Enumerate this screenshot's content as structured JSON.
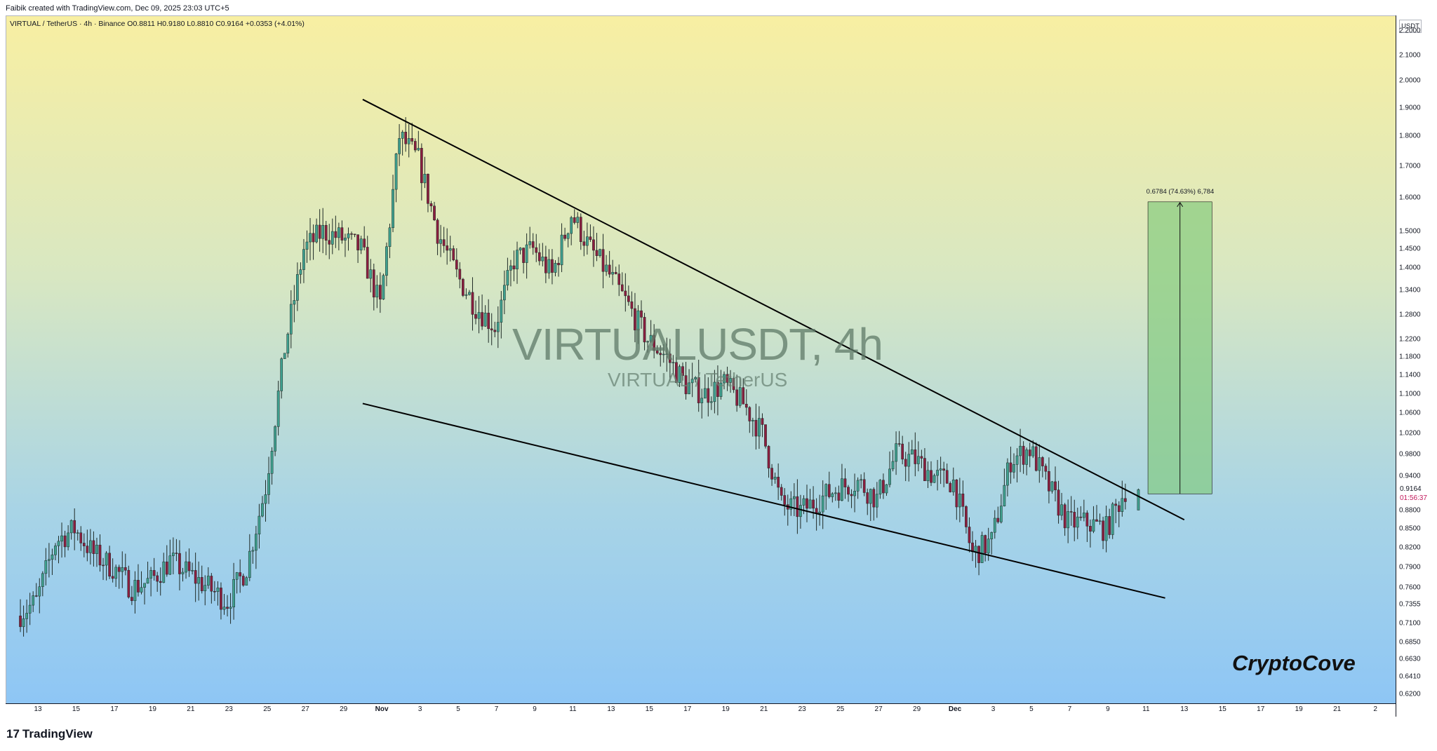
{
  "header": {
    "created_note": "Faibik created with TradingView.com, Dec 09, 2025 23:03 UTC+5"
  },
  "legend": {
    "line": "VIRTUAL / TetherUS · 4h · Binance  O0.8811  H0.9180  L0.8810  C0.9164  +0.0353 (+4.01%)"
  },
  "watermark": {
    "symbol": "VIRTUALUSDT, 4h",
    "name": "VIRTUAL / TetherUS"
  },
  "signature": "CryptoCove",
  "footer": {
    "logo_mark": "17",
    "logo_text": "TradingView"
  },
  "chart_data": {
    "type": "candlestick",
    "symbol": "VIRTUAL / TetherUS",
    "timeframe": "4h",
    "exchange": "Binance",
    "ohlc": {
      "open": 0.8811,
      "high": 0.918,
      "low": 0.881,
      "close": 0.9164,
      "change": 0.0353,
      "change_pct": "+4.01%"
    },
    "y_axis": {
      "title": "USDT",
      "scale": "log",
      "ticks": [
        "2.2000",
        "2.1000",
        "2.0000",
        "1.9000",
        "1.8000",
        "1.7000",
        "1.6000",
        "1.5000",
        "1.4500",
        "1.4000",
        "1.3400",
        "1.2800",
        "1.2200",
        "1.1800",
        "1.1400",
        "1.1000",
        "1.0600",
        "1.0200",
        "0.9800",
        "0.9400",
        "0.8800",
        "0.8500",
        "0.8200",
        "0.7900",
        "0.7600",
        "0.7355",
        "0.7100",
        "0.6850",
        "0.6630",
        "0.6410",
        "0.6200"
      ],
      "range": [
        0.6,
        2.3
      ]
    },
    "x_axis": {
      "ticks": [
        "13",
        "15",
        "17",
        "19",
        "21",
        "23",
        "25",
        "27",
        "29",
        "Nov",
        "3",
        "5",
        "7",
        "9",
        "11",
        "13",
        "15",
        "17",
        "19",
        "21",
        "23",
        "25",
        "27",
        "29",
        "Dec",
        "3",
        "5",
        "7",
        "9",
        "11",
        "13",
        "15",
        "17",
        "19",
        "21",
        "2"
      ]
    },
    "price_label": {
      "value": "0.9164",
      "countdown": "01:56:37"
    },
    "pattern": "falling wedge",
    "trendlines": [
      {
        "name": "upper",
        "from": [
          "Oct 30",
          1.93
        ],
        "to": [
          "Dec 12",
          0.865
        ]
      },
      {
        "name": "lower",
        "from": [
          "Oct 30",
          1.08
        ],
        "to": [
          "Dec 11",
          0.745
        ]
      }
    ],
    "target_measure": {
      "label": "0.6784 (74.63%) 6,784",
      "from_price": 0.9089,
      "to_price": 1.5873,
      "change": 0.6784,
      "change_pct": "74.63%"
    },
    "series": [
      {
        "name": "VIRTUALUSDT close (approx.)",
        "x": [
          "Oct 12",
          "Oct 13",
          "Oct 14",
          "Oct 15",
          "Oct 16",
          "Oct 17",
          "Oct 18",
          "Oct 19",
          "Oct 20",
          "Oct 21",
          "Oct 22",
          "Oct 23",
          "Oct 24",
          "Oct 25",
          "Oct 26",
          "Oct 27",
          "Oct 28",
          "Oct 29",
          "Oct 30",
          "Oct 31",
          "Nov 1",
          "Nov 2",
          "Nov 3",
          "Nov 4",
          "Nov 5",
          "Nov 6",
          "Nov 7",
          "Nov 8",
          "Nov 9",
          "Nov 10",
          "Nov 11",
          "Nov 12",
          "Nov 13",
          "Nov 14",
          "Nov 15",
          "Nov 16",
          "Nov 17",
          "Nov 18",
          "Nov 19",
          "Nov 20",
          "Nov 21",
          "Nov 22",
          "Nov 23",
          "Nov 24",
          "Nov 25",
          "Nov 26",
          "Nov 27",
          "Nov 28",
          "Nov 29",
          "Nov 30",
          "Dec 1",
          "Dec 2",
          "Dec 3",
          "Dec 4",
          "Dec 5",
          "Dec 6",
          "Dec 7",
          "Dec 8",
          "Dec 9"
        ],
        "values": [
          0.72,
          0.74,
          0.83,
          0.85,
          0.81,
          0.79,
          0.76,
          0.77,
          0.8,
          0.78,
          0.76,
          0.74,
          0.79,
          0.92,
          1.2,
          1.45,
          1.5,
          1.48,
          1.45,
          1.3,
          1.8,
          1.72,
          1.5,
          1.38,
          1.3,
          1.25,
          1.42,
          1.45,
          1.38,
          1.55,
          1.45,
          1.38,
          1.3,
          1.22,
          1.18,
          1.12,
          1.1,
          1.12,
          1.08,
          1.02,
          0.89,
          0.88,
          0.9,
          0.92,
          0.93,
          0.9,
          0.98,
          0.97,
          0.94,
          0.93,
          0.81,
          0.83,
          0.97,
          0.99,
          0.92,
          0.86,
          0.86,
          0.85,
          0.9164
        ]
      }
    ]
  },
  "colors": {
    "bull": "#26a69a",
    "bear": "#8b1e3f",
    "candle": "#1f2a26",
    "target_box": "#7fc97a",
    "trendline": "#000000",
    "countdown": "#c2185b"
  }
}
